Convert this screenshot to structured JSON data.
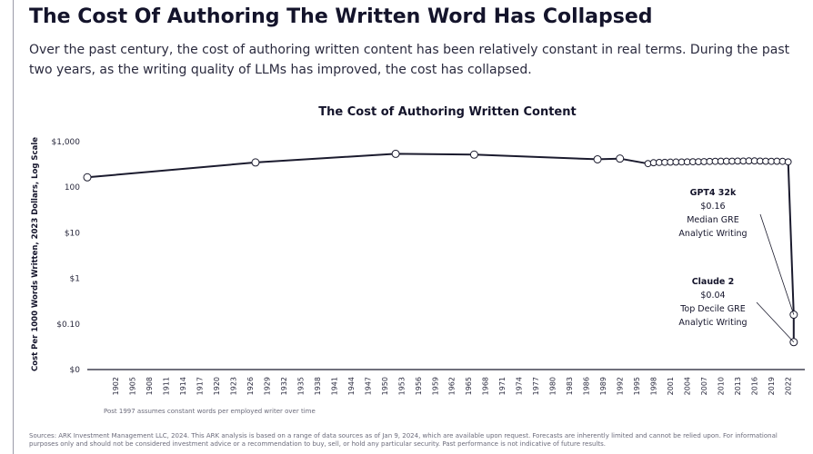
{
  "page": {
    "headline": "The Cost Of Authoring The Written Word Has Collapsed",
    "subtitle": "Over the past century, the cost of authoring written content has been relatively constant in real terms. During the past two years, as the writing quality of LLMs has improved, the cost has collapsed.",
    "footnote": "Sources: ARK Investment Management LLC, 2024. This ARK analysis is based on a range of data sources as of Jan 9, 2024, which are available upon request. Forecasts are inherently limited and cannot be relied upon. For informational purposes only and should not be considered investment advice or a recommendation to buy, sell, or hold any particular security. Past performance is not indicative of future results."
  },
  "chart_data": {
    "type": "line",
    "title": "The Cost of Authoring Written Content",
    "ylabel": "Cost Per 1000 Words Written, 2023 Dollars, Log Scale",
    "xlabel": "",
    "y_scale": "log",
    "ylim": [
      0.01,
      1000
    ],
    "xlim": [
      1897,
      2024
    ],
    "y_ticks": [
      {
        "value": 1000,
        "label": "$1,000"
      },
      {
        "value": 100,
        "label": "100"
      },
      {
        "value": 10,
        "label": "$10"
      },
      {
        "value": 1,
        "label": "$1"
      },
      {
        "value": 0.1,
        "label": "$0.10"
      },
      {
        "value": 0.01,
        "label": "$0"
      }
    ],
    "x_ticks": [
      "1902",
      "1905",
      "1908",
      "1911",
      "1914",
      "1917",
      "1920",
      "1923",
      "1926",
      "1929",
      "1932",
      "1935",
      "1938",
      "1941",
      "1944",
      "1947",
      "1950",
      "1953",
      "1956",
      "1959",
      "1962",
      "1965",
      "1968",
      "1971",
      "1974",
      "1977",
      "1980",
      "1983",
      "1986",
      "1989",
      "1992",
      "1995",
      "1998",
      "2001",
      "2004",
      "2007",
      "2010",
      "2013",
      "2016",
      "2019",
      "2022"
    ],
    "grid": false,
    "line_color": "#1b1b2e",
    "series": [
      {
        "name": "",
        "points": [
          {
            "x": 1897,
            "y": 165
          },
          {
            "x": 1927,
            "y": 350
          },
          {
            "x": 1952,
            "y": 540
          },
          {
            "x": 1966,
            "y": 520
          },
          {
            "x": 1988,
            "y": 410
          },
          {
            "x": 1992,
            "y": 425
          },
          {
            "x": 1997,
            "y": 330
          },
          {
            "x": 1998,
            "y": 345
          },
          {
            "x": 1999,
            "y": 350
          },
          {
            "x": 2000,
            "y": 352
          },
          {
            "x": 2001,
            "y": 355
          },
          {
            "x": 2002,
            "y": 357
          },
          {
            "x": 2003,
            "y": 358
          },
          {
            "x": 2004,
            "y": 360
          },
          {
            "x": 2005,
            "y": 362
          },
          {
            "x": 2006,
            "y": 363
          },
          {
            "x": 2007,
            "y": 365
          },
          {
            "x": 2008,
            "y": 368
          },
          {
            "x": 2009,
            "y": 370
          },
          {
            "x": 2010,
            "y": 372
          },
          {
            "x": 2011,
            "y": 372
          },
          {
            "x": 2012,
            "y": 373
          },
          {
            "x": 2013,
            "y": 375
          },
          {
            "x": 2014,
            "y": 375
          },
          {
            "x": 2015,
            "y": 378
          },
          {
            "x": 2016,
            "y": 378
          },
          {
            "x": 2017,
            "y": 375
          },
          {
            "x": 2018,
            "y": 372
          },
          {
            "x": 2019,
            "y": 370
          },
          {
            "x": 2020,
            "y": 372
          },
          {
            "x": 2021,
            "y": 370
          },
          {
            "x": 2022,
            "y": 360
          },
          {
            "x": 2023,
            "y": 0.16
          },
          {
            "x": 2023,
            "y": 0.04
          }
        ]
      }
    ],
    "annotations": [
      {
        "lines": [
          "GPT4 32k",
          "$0.16",
          "Median GRE",
          "Analytic Writing"
        ],
        "target": {
          "x": 2023,
          "y": 0.16
        }
      },
      {
        "lines": [
          "Claude 2",
          "$0.04",
          "Top Decile GRE",
          "Analytic Writing"
        ],
        "target": {
          "x": 2023,
          "y": 0.04
        }
      }
    ],
    "note": "Post 1997 assumes constant words per employed writer over time"
  }
}
